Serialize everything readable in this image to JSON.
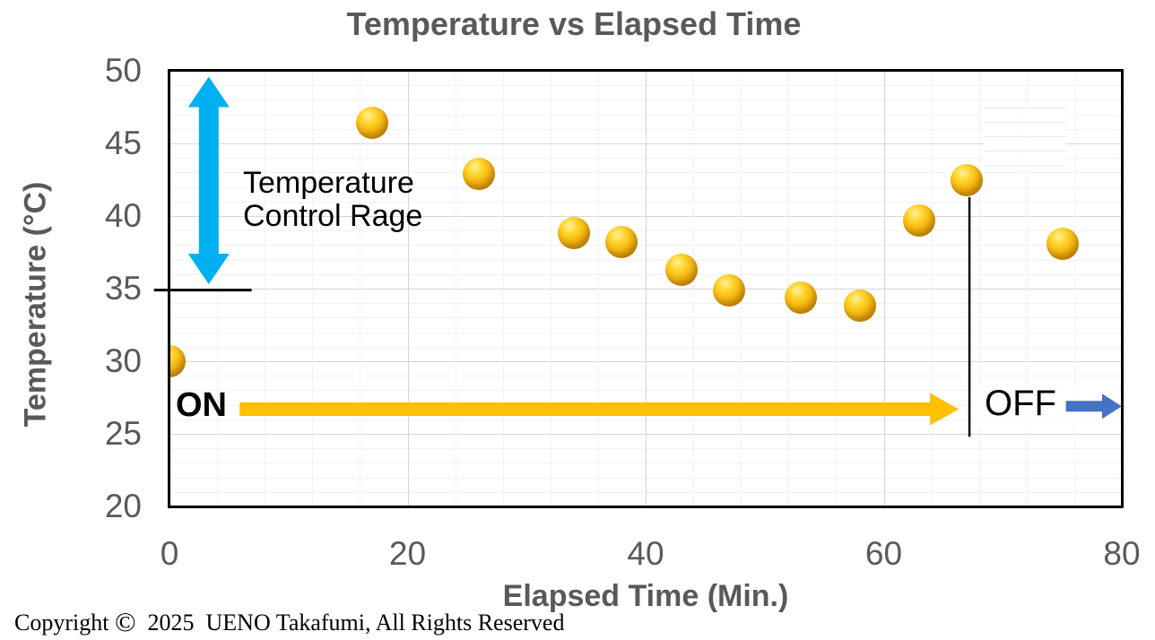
{
  "title": "Temperature vs Elapsed Time",
  "x_axis": {
    "label": "Elapsed Time (Min.)",
    "ticks": [
      0,
      20,
      40,
      60,
      80
    ],
    "min": 0,
    "max": 80,
    "minor_unit": 4,
    "major_unit": 20
  },
  "y_axis": {
    "label": "Temperature (°C)",
    "ticks": [
      50,
      45,
      40,
      35,
      30,
      25,
      20
    ],
    "min": 20,
    "max": 50,
    "minor_unit": 1,
    "major_unit": 5
  },
  "chart_data": {
    "type": "scatter",
    "title": "Temperature vs Elapsed Time",
    "xlabel": "Elapsed Time (Min.)",
    "ylabel": "Temperature (°C)",
    "xlim": [
      0,
      80
    ],
    "ylim": [
      20,
      50
    ],
    "grid": true,
    "legend": "none",
    "marker": "gold-3d-sphere",
    "points": [
      {
        "x": 0,
        "y": 30.0
      },
      {
        "x": 17,
        "y": 46.4
      },
      {
        "x": 26,
        "y": 42.9
      },
      {
        "x": 34,
        "y": 38.8
      },
      {
        "x": 38,
        "y": 38.2
      },
      {
        "x": 43,
        "y": 36.3
      },
      {
        "x": 47,
        "y": 34.9
      },
      {
        "x": 53,
        "y": 34.4
      },
      {
        "x": 58,
        "y": 33.8
      },
      {
        "x": 63,
        "y": 39.7
      },
      {
        "x": 67,
        "y": 42.5
      },
      {
        "x": 75,
        "y": 38.1
      }
    ]
  },
  "annotations": {
    "control_range": {
      "label": "Temperature\nControl Rage",
      "x_min": 3.3,
      "top_temp": 49.6,
      "bottom_temp": 35.3,
      "color": "#00B0F0"
    },
    "threshold": {
      "temp": 34.9,
      "x_from_min": -1.3,
      "x_to_min": 6.9,
      "color": "#000000"
    },
    "heater_on": {
      "label": "ON",
      "arrow_from_min": 5.9,
      "arrow_to_min": 66.3,
      "temp": 26.7,
      "color": "#FFC000"
    },
    "heater_off_line": {
      "x_min": 67.2,
      "temp_from": 41.3,
      "temp_to": 24.8,
      "color": "#000000"
    },
    "heater_off": {
      "label": "OFF",
      "arrow_from_min": 75.3,
      "arrow_to_min": 80,
      "temp": 26.9,
      "color": "#4472C4"
    }
  },
  "footer": {
    "copyright_prefix": "Copyright ",
    "copyright_symbol": "©",
    "copyright_suffix": "  2025  UENO Takafumi, All Rights Reserved"
  },
  "colors": {
    "axis_text": "#595959",
    "major_grid": "#d6d6d6",
    "minor_grid": "#f2f2f2",
    "marker_gold": "#FFC000",
    "range_arrow_cyan": "#00B0F0",
    "off_arrow_blue": "#4472C4",
    "plot_border": "#000000"
  }
}
